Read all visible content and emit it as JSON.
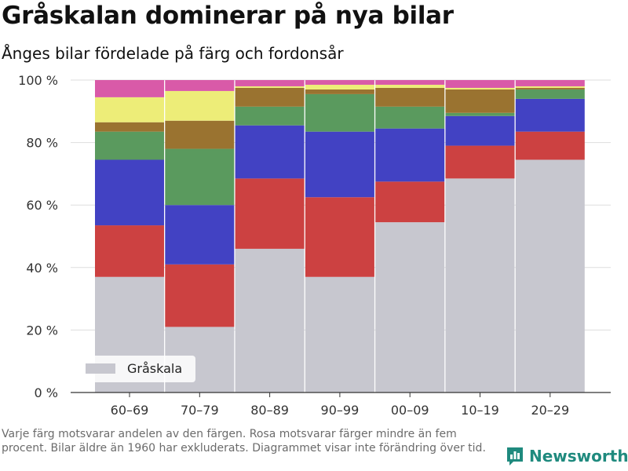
{
  "title": "Gråskalan dominerar på nya bilar",
  "subtitle": "Ånges bilar fördelade på färg och fordonsår",
  "footnote": "Varje färg motsvarar andelen av den färgen. Rosa motsvarar färger mindre än fem procent. Bilar äldre än 1960 har exkluderats. Diagrammet visar inte förändring över tid.",
  "brand": {
    "name": "Newsworthy",
    "icon": "bar-chart-logo-icon",
    "color": "#1f8a7e"
  },
  "chart_data": {
    "type": "bar",
    "stacked": true,
    "categories": [
      "60–69",
      "70–79",
      "80–89",
      "90–99",
      "00–09",
      "10–19",
      "20–29"
    ],
    "y_ticks": [
      "0 %",
      "20 %",
      "40 %",
      "60 %",
      "80 %",
      "100 %"
    ],
    "ylim": [
      0,
      100
    ],
    "grid": true,
    "legend": {
      "placement": "bottom-left",
      "entries": [
        "Gråskala"
      ]
    },
    "series": [
      {
        "name": "Gråskala",
        "color": "#c7c7cf",
        "values": [
          37,
          21,
          46,
          37,
          54.5,
          68.5,
          74.5
        ]
      },
      {
        "color": "#cc4141",
        "values": [
          16.5,
          20,
          22.5,
          25.5,
          13,
          10.5,
          9
        ]
      },
      {
        "color": "#4242c3",
        "values": [
          21,
          19,
          17,
          21,
          17,
          9.5,
          10.5
        ]
      },
      {
        "color": "#5a9a5e",
        "values": [
          9,
          18,
          6,
          12,
          7,
          1,
          3
        ]
      },
      {
        "color": "#9a7330",
        "values": [
          3,
          9,
          6,
          1.5,
          6,
          7.5,
          0.5
        ]
      },
      {
        "color": "#eded78",
        "values": [
          8,
          9.5,
          0.5,
          1.5,
          1,
          0.5,
          0.5
        ]
      },
      {
        "color": "#d95aa8",
        "values": [
          5.5,
          3.5,
          2,
          1.5,
          1.5,
          2.5,
          2
        ]
      }
    ]
  }
}
